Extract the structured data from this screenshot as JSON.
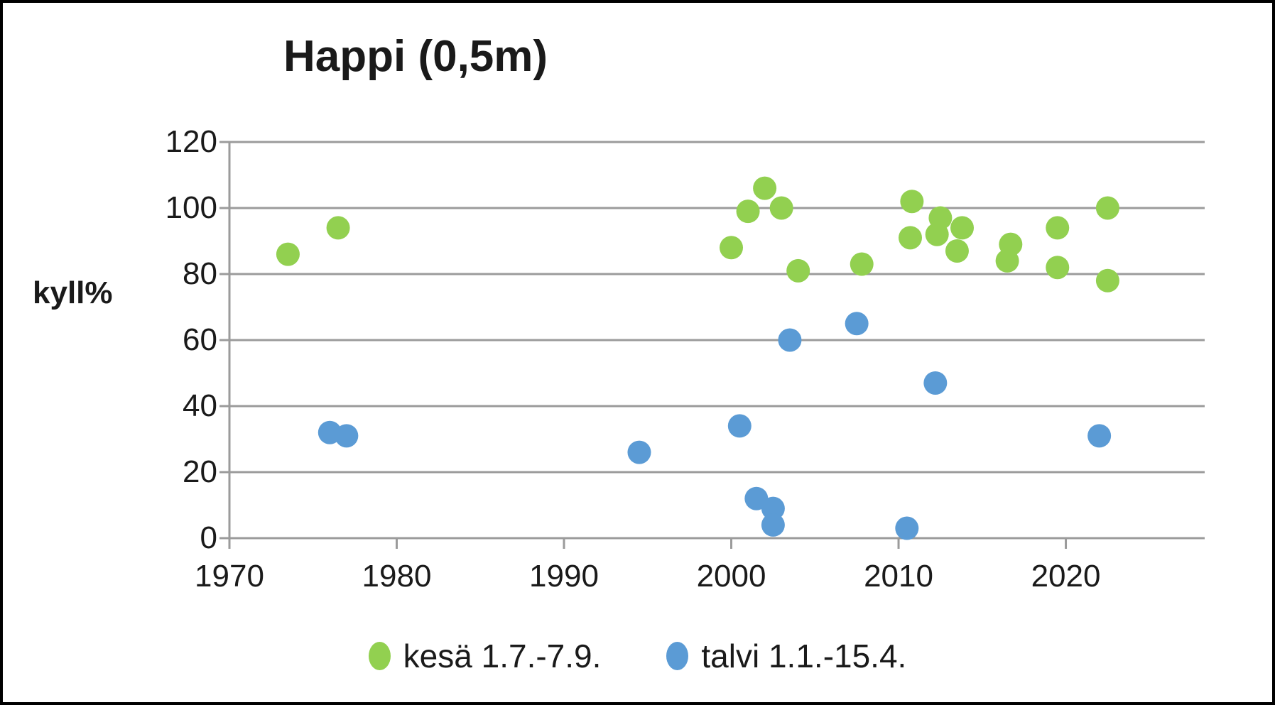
{
  "title": "Happi (0,5m)",
  "y_axis": {
    "label": "kyll%"
  },
  "legend": {
    "items": [
      {
        "label": "kesä 1.7.-7.9.",
        "color": "#92d050"
      },
      {
        "label": "talvi 1.1.-15.4.",
        "color": "#5b9bd5"
      }
    ]
  },
  "colors": {
    "grid": "#9b9b9b",
    "axis": "#9b9b9b",
    "text": "#1a1a1a",
    "summer": "#92d050",
    "winter": "#5b9bd5"
  },
  "chart_data": {
    "type": "scatter",
    "title": "Happi (0,5m)",
    "xlabel": "",
    "ylabel": "kyll%",
    "xlim": [
      1970,
      2028.3
    ],
    "ylim": [
      0,
      120
    ],
    "x_ticks": [
      1970,
      1980,
      1990,
      2000,
      2010,
      2020
    ],
    "y_ticks": [
      0,
      20,
      40,
      60,
      80,
      100,
      120
    ],
    "grid": "horizontal",
    "legend_position": "bottom",
    "marker": "circle",
    "series": [
      {
        "name": "kesä 1.7.-7.9.",
        "color": "#92d050",
        "points": [
          [
            1973.5,
            86
          ],
          [
            1976.5,
            94
          ],
          [
            2000,
            88
          ],
          [
            2001,
            99
          ],
          [
            2002,
            106
          ],
          [
            2003,
            100
          ],
          [
            2004,
            81
          ],
          [
            2007.8,
            83
          ],
          [
            2010.7,
            91
          ],
          [
            2010.8,
            102
          ],
          [
            2012.3,
            92
          ],
          [
            2012.5,
            97
          ],
          [
            2013.8,
            94
          ],
          [
            2013.5,
            87
          ],
          [
            2016.5,
            84
          ],
          [
            2016.7,
            89
          ],
          [
            2019.5,
            94
          ],
          [
            2019.5,
            82
          ],
          [
            2022.5,
            100
          ],
          [
            2022.5,
            78
          ]
        ]
      },
      {
        "name": "talvi 1.1.-15.4.",
        "color": "#5b9bd5",
        "points": [
          [
            1976,
            32
          ],
          [
            1977,
            31
          ],
          [
            1994.5,
            26
          ],
          [
            2000.5,
            34
          ],
          [
            2001.5,
            12
          ],
          [
            2002.5,
            9
          ],
          [
            2002.5,
            4
          ],
          [
            2003.5,
            60
          ],
          [
            2007.5,
            65
          ],
          [
            2010.5,
            3
          ],
          [
            2012.2,
            47
          ],
          [
            2022,
            31
          ]
        ]
      }
    ]
  }
}
